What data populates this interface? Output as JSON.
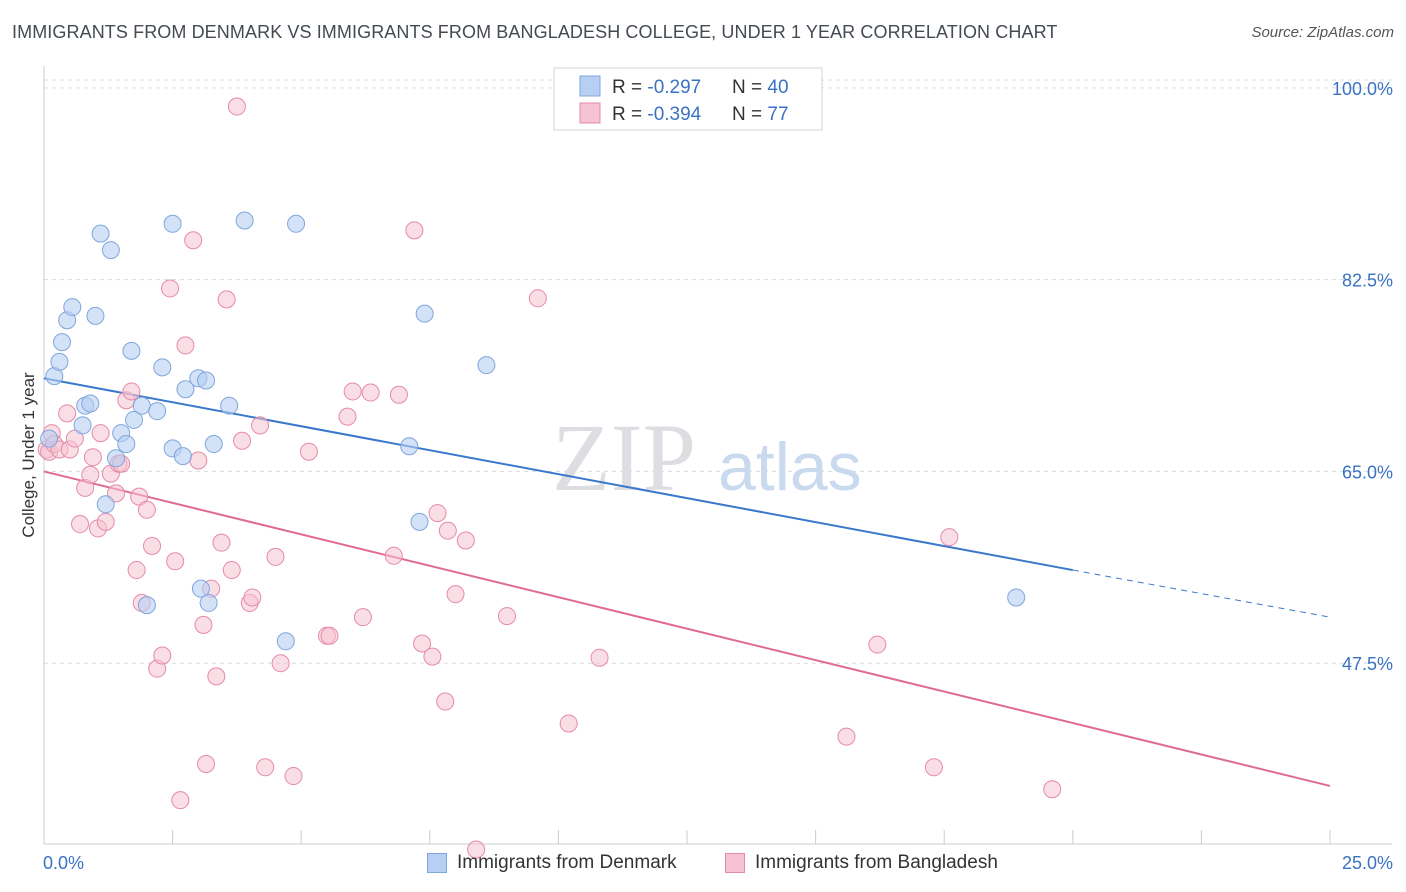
{
  "title": "IMMIGRANTS FROM DENMARK VS IMMIGRANTS FROM BANGLADESH COLLEGE, UNDER 1 YEAR CORRELATION CHART",
  "source": "Source: ZipAtlas.com",
  "watermark": {
    "zip": "ZIP",
    "atlas": "atlas"
  },
  "colors": {
    "denmark_fill": "#b6cff2",
    "denmark_stroke": "#7fa6dc",
    "denmark_line": "#3a78cc",
    "bangladesh_fill": "#f6c3d2",
    "bangladesh_stroke": "#e58aa8",
    "bangladesh_line": "#e06a96",
    "tick_label": "#3a72c4",
    "grid": "#d8dbe0"
  },
  "legend_top": {
    "rows": [
      {
        "r_label": "R = ",
        "r_value": "-0.297",
        "n_label": "N = ",
        "n_value": "40"
      },
      {
        "r_label": "R = ",
        "r_value": "-0.394",
        "n_label": "N = ",
        "n_value": "77"
      }
    ]
  },
  "legend_bottom": [
    "Immigrants from Denmark",
    "Immigrants from Bangladesh"
  ],
  "chart_data": {
    "type": "scatter",
    "ylabel": "College, Under 1 year",
    "xlim": [
      0,
      25
    ],
    "ylim": [
      31,
      102
    ],
    "x_tick_labels": [
      "0.0%",
      "25.0%"
    ],
    "y_ticks": [
      47.5,
      65.0,
      82.5,
      100.0
    ],
    "y_tick_labels": [
      "47.5%",
      "65.0%",
      "82.5%",
      "100.0%"
    ],
    "grid": "horizontal dashed",
    "series": [
      {
        "name": "Immigrants from Denmark",
        "r": -0.297,
        "n": 40,
        "trend": {
          "x0": 0.0,
          "y0": 73.5,
          "x1": 20.0,
          "y1": 56.0,
          "dashed_to_x": 25.0,
          "dashed_to_y": 51.7
        },
        "points": [
          [
            0.2,
            73.7
          ],
          [
            0.3,
            75.0
          ],
          [
            0.35,
            76.8
          ],
          [
            0.45,
            78.8
          ],
          [
            0.55,
            80.0
          ],
          [
            0.75,
            69.2
          ],
          [
            0.8,
            71.0
          ],
          [
            0.9,
            71.2
          ],
          [
            1.0,
            79.2
          ],
          [
            1.1,
            86.7
          ],
          [
            1.3,
            85.2
          ],
          [
            1.4,
            66.2
          ],
          [
            1.5,
            68.5
          ],
          [
            1.6,
            67.5
          ],
          [
            1.7,
            76.0
          ],
          [
            1.75,
            69.7
          ],
          [
            1.9,
            71.0
          ],
          [
            1.2,
            62.0
          ],
          [
            2.0,
            52.8
          ],
          [
            2.2,
            70.5
          ],
          [
            2.3,
            74.5
          ],
          [
            2.5,
            87.6
          ],
          [
            2.5,
            67.1
          ],
          [
            2.7,
            66.4
          ],
          [
            2.75,
            72.5
          ],
          [
            3.0,
            73.5
          ],
          [
            3.05,
            54.3
          ],
          [
            3.15,
            73.3
          ],
          [
            3.2,
            53.0
          ],
          [
            3.3,
            67.5
          ],
          [
            3.6,
            71.0
          ],
          [
            3.9,
            87.9
          ],
          [
            4.7,
            49.5
          ],
          [
            4.9,
            87.6
          ],
          [
            7.1,
            67.3
          ],
          [
            7.3,
            60.4
          ],
          [
            7.4,
            79.4
          ],
          [
            8.6,
            74.7
          ],
          [
            18.9,
            53.5
          ],
          [
            0.1,
            68.0
          ]
        ]
      },
      {
        "name": "Immigrants from Bangladesh",
        "r": -0.394,
        "n": 77,
        "trend": {
          "x0": 0.0,
          "y0": 65.0,
          "x1": 25.0,
          "y1": 36.3
        },
        "points": [
          [
            0.05,
            67.0
          ],
          [
            0.1,
            66.8
          ],
          [
            0.15,
            68.5
          ],
          [
            0.2,
            67.5
          ],
          [
            0.3,
            67.0
          ],
          [
            0.45,
            70.3
          ],
          [
            0.5,
            67.0
          ],
          [
            0.6,
            68.0
          ],
          [
            0.7,
            60.2
          ],
          [
            0.8,
            63.5
          ],
          [
            0.9,
            64.7
          ],
          [
            0.95,
            66.3
          ],
          [
            1.05,
            59.8
          ],
          [
            1.1,
            68.5
          ],
          [
            1.2,
            60.4
          ],
          [
            1.3,
            64.8
          ],
          [
            1.4,
            63.0
          ],
          [
            1.45,
            65.7
          ],
          [
            1.5,
            65.7
          ],
          [
            1.6,
            71.5
          ],
          [
            1.7,
            72.3
          ],
          [
            1.8,
            56.0
          ],
          [
            1.85,
            62.7
          ],
          [
            1.9,
            53.0
          ],
          [
            2.0,
            61.5
          ],
          [
            2.1,
            58.2
          ],
          [
            2.2,
            47.0
          ],
          [
            2.3,
            48.2
          ],
          [
            2.45,
            81.7
          ],
          [
            2.55,
            56.8
          ],
          [
            2.65,
            35.0
          ],
          [
            2.75,
            76.5
          ],
          [
            2.9,
            86.1
          ],
          [
            3.0,
            66.0
          ],
          [
            3.1,
            51.0
          ],
          [
            3.15,
            38.3
          ],
          [
            3.25,
            54.3
          ],
          [
            3.35,
            46.3
          ],
          [
            3.45,
            58.5
          ],
          [
            3.55,
            80.7
          ],
          [
            3.65,
            56.0
          ],
          [
            3.75,
            98.3
          ],
          [
            3.85,
            67.8
          ],
          [
            4.0,
            53.0
          ],
          [
            4.05,
            53.5
          ],
          [
            4.2,
            69.2
          ],
          [
            4.3,
            38.0
          ],
          [
            4.5,
            57.2
          ],
          [
            4.6,
            47.5
          ],
          [
            4.85,
            37.2
          ],
          [
            5.15,
            66.8
          ],
          [
            5.5,
            50.0
          ],
          [
            5.55,
            50.0
          ],
          [
            5.9,
            70.0
          ],
          [
            6.0,
            72.3
          ],
          [
            6.2,
            51.7
          ],
          [
            6.35,
            72.2
          ],
          [
            6.8,
            57.3
          ],
          [
            6.9,
            72.0
          ],
          [
            7.2,
            87.0
          ],
          [
            7.35,
            49.3
          ],
          [
            7.55,
            48.1
          ],
          [
            7.65,
            61.2
          ],
          [
            7.8,
            44.0
          ],
          [
            7.85,
            59.6
          ],
          [
            8.0,
            53.8
          ],
          [
            8.2,
            58.7
          ],
          [
            8.4,
            30.5
          ],
          [
            9.0,
            51.8
          ],
          [
            9.6,
            80.8
          ],
          [
            10.2,
            42.0
          ],
          [
            10.8,
            48.0
          ],
          [
            15.6,
            40.8
          ],
          [
            16.2,
            49.2
          ],
          [
            17.3,
            38.0
          ],
          [
            17.6,
            59.0
          ],
          [
            19.6,
            36.0
          ]
        ]
      }
    ]
  }
}
